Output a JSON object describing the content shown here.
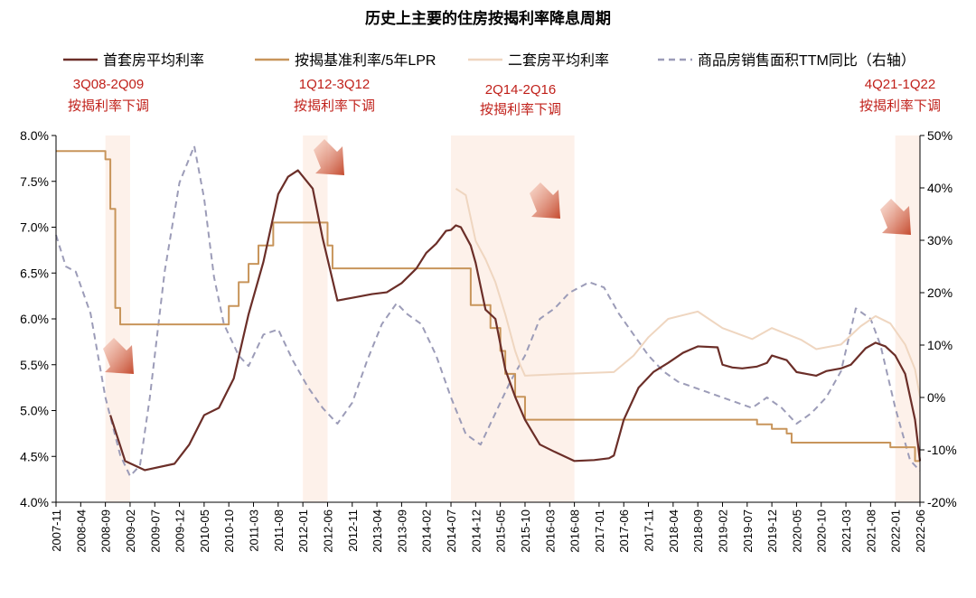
{
  "chart_data": {
    "type": "line",
    "title": "历史上主要的住房按揭利率降息周期",
    "left_axis": {
      "ticks": [
        "4.0%",
        "4.5%",
        "5.0%",
        "5.5%",
        "6.0%",
        "6.5%",
        "7.0%",
        "7.5%",
        "8.0%"
      ],
      "range": [
        4.0,
        8.0
      ]
    },
    "right_axis": {
      "ticks": [
        "-20%",
        "-10%",
        "0%",
        "10%",
        "20%",
        "30%",
        "40%",
        "50%"
      ],
      "range": [
        -20,
        50
      ]
    },
    "x_ticks": [
      "2007-11",
      "2008-04",
      "2008-09",
      "2009-02",
      "2009-07",
      "2009-12",
      "2010-05",
      "2010-10",
      "2011-03",
      "2011-08",
      "2012-01",
      "2012-06",
      "2012-11",
      "2013-04",
      "2013-09",
      "2014-02",
      "2014-07",
      "2014-12",
      "2015-05",
      "2015-10",
      "2016-03",
      "2016-08",
      "2017-01",
      "2017-06",
      "2017-11",
      "2018-04",
      "2018-09",
      "2019-02",
      "2019-07",
      "2019-12",
      "2020-05",
      "2020-10",
      "2021-03",
      "2021-08",
      "2022-01",
      "2022-06"
    ],
    "x_range": [
      "2007-11",
      "2022-06"
    ],
    "grid": false,
    "legend": [
      "首套房平均利率",
      "按揭基准利率/5年LPR",
      "二套房平均利率",
      "商品房销售面积TTM同比（右轴）"
    ],
    "shaded_periods": [
      {
        "label": "3Q08-2Q09",
        "sublabel": "按揭利率下调",
        "start": "2008-09",
        "end": "2009-02"
      },
      {
        "label": "1Q12-3Q12",
        "sublabel": "按揭利率下调",
        "start": "2012-01",
        "end": "2012-06"
      },
      {
        "label": "2Q14-2Q16",
        "sublabel": "按揭利率下调",
        "start": "2014-07",
        "end": "2016-08"
      },
      {
        "label": "4Q21-1Q22",
        "sublabel": "按揭利率下调",
        "start": "2022-01",
        "end": "2022-06"
      }
    ],
    "series": [
      {
        "name": "首套房平均利率",
        "color": "#6b2e28",
        "axis": "left",
        "points": [
          [
            "2008-10",
            4.95
          ],
          [
            "2009-01",
            4.45
          ],
          [
            "2009-05",
            4.35
          ],
          [
            "2009-11",
            4.42
          ],
          [
            "2010-02",
            4.63
          ],
          [
            "2010-05",
            4.95
          ],
          [
            "2010-08",
            5.03
          ],
          [
            "2010-11",
            5.35
          ],
          [
            "2011-02",
            6.05
          ],
          [
            "2011-05",
            6.62
          ],
          [
            "2011-08",
            7.36
          ],
          [
            "2011-10",
            7.55
          ],
          [
            "2011-12",
            7.62
          ],
          [
            "2012-03",
            7.42
          ],
          [
            "2012-05",
            6.88
          ],
          [
            "2012-08",
            6.2
          ],
          [
            "2012-11",
            6.23
          ],
          [
            "2013-03",
            6.27
          ],
          [
            "2013-06",
            6.29
          ],
          [
            "2013-09",
            6.39
          ],
          [
            "2013-12",
            6.55
          ],
          [
            "2014-02",
            6.72
          ],
          [
            "2014-04",
            6.82
          ],
          [
            "2014-06",
            6.96
          ],
          [
            "2014-07",
            6.97
          ],
          [
            "2014-08",
            7.02
          ],
          [
            "2014-09",
            7.0
          ],
          [
            "2014-11",
            6.8
          ],
          [
            "2014-12",
            6.61
          ],
          [
            "2015-02",
            6.1
          ],
          [
            "2015-04",
            6.0
          ],
          [
            "2015-06",
            5.45
          ],
          [
            "2015-08",
            5.15
          ],
          [
            "2015-10",
            4.9
          ],
          [
            "2016-01",
            4.63
          ],
          [
            "2016-04",
            4.55
          ],
          [
            "2016-08",
            4.45
          ],
          [
            "2016-12",
            4.46
          ],
          [
            "2017-03",
            4.48
          ],
          [
            "2017-04",
            4.51
          ],
          [
            "2017-06",
            4.9
          ],
          [
            "2017-09",
            5.25
          ],
          [
            "2017-12",
            5.42
          ],
          [
            "2018-03",
            5.52
          ],
          [
            "2018-06",
            5.63
          ],
          [
            "2018-09",
            5.7
          ],
          [
            "2019-01",
            5.69
          ],
          [
            "2019-02",
            5.5
          ],
          [
            "2019-04",
            5.47
          ],
          [
            "2019-06",
            5.46
          ],
          [
            "2019-09",
            5.48
          ],
          [
            "2019-11",
            5.52
          ],
          [
            "2019-12",
            5.6
          ],
          [
            "2020-03",
            5.55
          ],
          [
            "2020-05",
            5.42
          ],
          [
            "2020-07",
            5.4
          ],
          [
            "2020-09",
            5.38
          ],
          [
            "2020-11",
            5.43
          ],
          [
            "2021-02",
            5.46
          ],
          [
            "2021-04",
            5.5
          ],
          [
            "2021-07",
            5.68
          ],
          [
            "2021-09",
            5.74
          ],
          [
            "2021-11",
            5.7
          ],
          [
            "2022-01",
            5.6
          ],
          [
            "2022-03",
            5.4
          ],
          [
            "2022-04",
            5.15
          ],
          [
            "2022-05",
            4.9
          ],
          [
            "2022-06",
            4.45
          ]
        ]
      },
      {
        "name": "按揭基准利率/5年LPR",
        "color": "#c8955b",
        "axis": "left",
        "points": [
          [
            "2007-11",
            7.83
          ],
          [
            "2008-08",
            7.83
          ],
          [
            "2008-09",
            7.74
          ],
          [
            "2008-10",
            7.47
          ],
          [
            "2008-10",
            7.2
          ],
          [
            "2008-11",
            6.12
          ],
          [
            "2008-12",
            5.94
          ],
          [
            "2010-09",
            5.94
          ],
          [
            "2010-10",
            6.14
          ],
          [
            "2010-12",
            6.4
          ],
          [
            "2011-02",
            6.6
          ],
          [
            "2011-04",
            6.8
          ],
          [
            "2011-07",
            7.05
          ],
          [
            "2012-06",
            6.8
          ],
          [
            "2012-07",
            6.55
          ],
          [
            "2014-11",
            6.15
          ],
          [
            "2015-03",
            5.9
          ],
          [
            "2015-05",
            5.65
          ],
          [
            "2015-06",
            5.4
          ],
          [
            "2015-08",
            5.15
          ],
          [
            "2015-10",
            4.9
          ],
          [
            "2019-09",
            4.85
          ],
          [
            "2019-12",
            4.8
          ],
          [
            "2020-03",
            4.75
          ],
          [
            "2020-04",
            4.65
          ],
          [
            "2021-11",
            4.65
          ],
          [
            "2021-12",
            4.6
          ],
          [
            "2022-05",
            4.6
          ],
          [
            "2022-05",
            4.45
          ],
          [
            "2022-06",
            4.45
          ]
        ]
      },
      {
        "name": "二套房平均利率",
        "color": "#efd6c0",
        "axis": "left",
        "points": [
          [
            "2014-08",
            7.42
          ],
          [
            "2014-10",
            7.35
          ],
          [
            "2014-12",
            6.85
          ],
          [
            "2015-02",
            6.65
          ],
          [
            "2015-04",
            6.4
          ],
          [
            "2015-06",
            6.05
          ],
          [
            "2015-08",
            5.65
          ],
          [
            "2015-09",
            5.5
          ],
          [
            "2015-10",
            5.38
          ],
          [
            "2016-06",
            5.4
          ],
          [
            "2017-04",
            5.42
          ],
          [
            "2017-08",
            5.6
          ],
          [
            "2017-11",
            5.8
          ],
          [
            "2018-03",
            6.0
          ],
          [
            "2018-09",
            6.08
          ],
          [
            "2019-02",
            5.9
          ],
          [
            "2019-08",
            5.78
          ],
          [
            "2019-12",
            5.9
          ],
          [
            "2020-06",
            5.77
          ],
          [
            "2020-09",
            5.67
          ],
          [
            "2021-02",
            5.72
          ],
          [
            "2021-06",
            5.92
          ],
          [
            "2021-09",
            6.03
          ],
          [
            "2021-12",
            5.95
          ],
          [
            "2022-03",
            5.72
          ],
          [
            "2022-05",
            5.45
          ],
          [
            "2022-06",
            5.15
          ]
        ]
      },
      {
        "name": "商品房销售面积TTM同比（右轴）",
        "color": "#9c9cb8",
        "axis": "right",
        "dashed": true,
        "points": [
          [
            "2007-11",
            31
          ],
          [
            "2008-01",
            25
          ],
          [
            "2008-03",
            24
          ],
          [
            "2008-06",
            16
          ],
          [
            "2008-09",
            0
          ],
          [
            "2008-12",
            -11
          ],
          [
            "2009-02",
            -15
          ],
          [
            "2009-04",
            -13
          ],
          [
            "2009-06",
            0
          ],
          [
            "2009-09",
            24
          ],
          [
            "2009-12",
            41
          ],
          [
            "2010-03",
            48
          ],
          [
            "2010-05",
            38
          ],
          [
            "2010-07",
            23
          ],
          [
            "2010-09",
            14
          ],
          [
            "2010-12",
            8
          ],
          [
            "2011-02",
            6
          ],
          [
            "2011-05",
            12
          ],
          [
            "2011-08",
            13
          ],
          [
            "2011-11",
            7
          ],
          [
            "2012-02",
            2
          ],
          [
            "2012-05",
            -2
          ],
          [
            "2012-08",
            -5
          ],
          [
            "2012-11",
            -1
          ],
          [
            "2013-02",
            7
          ],
          [
            "2013-05",
            14
          ],
          [
            "2013-08",
            18
          ],
          [
            "2013-10",
            16
          ],
          [
            "2014-01",
            14
          ],
          [
            "2014-04",
            8
          ],
          [
            "2014-07",
            0
          ],
          [
            "2014-10",
            -7
          ],
          [
            "2015-01",
            -9
          ],
          [
            "2015-04",
            -3
          ],
          [
            "2015-07",
            3
          ],
          [
            "2015-10",
            8
          ],
          [
            "2016-01",
            15
          ],
          [
            "2016-04",
            17
          ],
          [
            "2016-07",
            20
          ],
          [
            "2016-11",
            22
          ],
          [
            "2017-02",
            21
          ],
          [
            "2017-05",
            16
          ],
          [
            "2017-08",
            12
          ],
          [
            "2017-11",
            8
          ],
          [
            "2018-02",
            5
          ],
          [
            "2018-05",
            3
          ],
          [
            "2018-08",
            2
          ],
          [
            "2018-11",
            1
          ],
          [
            "2019-02",
            0
          ],
          [
            "2019-05",
            -1
          ],
          [
            "2019-08",
            -2
          ],
          [
            "2019-11",
            0
          ],
          [
            "2020-02",
            -2
          ],
          [
            "2020-05",
            -5
          ],
          [
            "2020-08",
            -3
          ],
          [
            "2020-11",
            0
          ],
          [
            "2021-02",
            5
          ],
          [
            "2021-05",
            17
          ],
          [
            "2021-08",
            15
          ],
          [
            "2021-10",
            10
          ],
          [
            "2022-01",
            -2
          ],
          [
            "2022-04",
            -12
          ],
          [
            "2022-06",
            -14
          ]
        ]
      }
    ]
  }
}
